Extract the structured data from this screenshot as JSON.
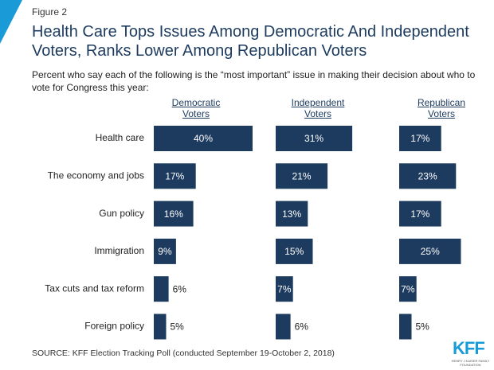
{
  "figure_label": "Figure 2",
  "title": "Health Care Tops Issues Among Democratic And Independent Voters, Ranks Lower Among Republican Voters",
  "subtitle": "Percent who say each of the following is the “most important” issue in making their decision about who to vote for Congress this year:",
  "source": "SOURCE: KFF Election Tracking Poll (conducted September 19-October 2, 2018)",
  "logo": {
    "name": "KFF",
    "tagline": "HENRY J KAISER FAMILY FOUNDATION"
  },
  "chart_data": {
    "type": "bar",
    "orientation": "horizontal",
    "color": "#1d3b5f",
    "categories": [
      "Health care",
      "The economy and jobs",
      "Gun policy",
      "Immigration",
      "Tax cuts and tax reform",
      "Foreign policy"
    ],
    "series": [
      {
        "name": "Democratic Voters",
        "values": [
          40,
          17,
          16,
          9,
          6,
          5
        ],
        "value_labels": [
          "40%",
          "17%",
          "16%",
          "9%",
          "6%",
          "5%"
        ]
      },
      {
        "name": "Independent Voters",
        "values": [
          31,
          21,
          13,
          15,
          7,
          6
        ],
        "value_labels": [
          "31%",
          "21%",
          "13%",
          "15%",
          "7%",
          "6%"
        ]
      },
      {
        "name": "Republican Voters",
        "values": [
          17,
          23,
          17,
          25,
          7,
          5
        ],
        "value_labels": [
          "17%",
          "23%",
          "17%",
          "25%",
          "7%",
          "5%"
        ]
      }
    ]
  }
}
